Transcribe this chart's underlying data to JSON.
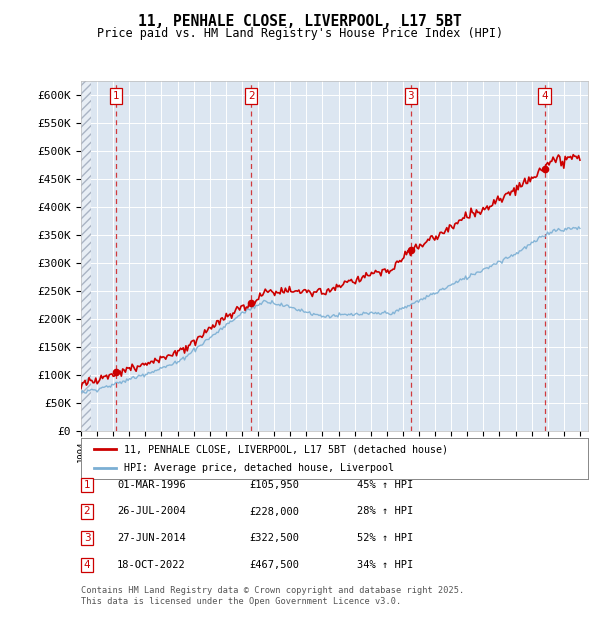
{
  "title1": "11, PENHALE CLOSE, LIVERPOOL, L17 5BT",
  "title2": "Price paid vs. HM Land Registry's House Price Index (HPI)",
  "ylabel_ticks": [
    "£0",
    "£50K",
    "£100K",
    "£150K",
    "£200K",
    "£250K",
    "£300K",
    "£350K",
    "£400K",
    "£450K",
    "£500K",
    "£550K",
    "£600K"
  ],
  "ytick_values": [
    0,
    50000,
    100000,
    150000,
    200000,
    250000,
    300000,
    350000,
    400000,
    450000,
    500000,
    550000,
    600000
  ],
  "xmin": 1994.0,
  "xmax": 2025.5,
  "ymin": 0,
  "ymax": 625000,
  "sale_dates": [
    1996.17,
    2004.57,
    2014.49,
    2022.8
  ],
  "sale_prices": [
    105950,
    228000,
    322500,
    467500
  ],
  "sale_labels": [
    "1",
    "2",
    "3",
    "4"
  ],
  "sale_date_strings": [
    "01-MAR-1996",
    "26-JUL-2004",
    "27-JUN-2014",
    "18-OCT-2022"
  ],
  "sale_price_strings": [
    "£105,950",
    "£228,000",
    "£322,500",
    "£467,500"
  ],
  "sale_hpi_strings": [
    "45% ↑ HPI",
    "28% ↑ HPI",
    "52% ↑ HPI",
    "34% ↑ HPI"
  ],
  "legend_line1": "11, PENHALE CLOSE, LIVERPOOL, L17 5BT (detached house)",
  "legend_line2": "HPI: Average price, detached house, Liverpool",
  "footer1": "Contains HM Land Registry data © Crown copyright and database right 2025.",
  "footer2": "This data is licensed under the Open Government Licence v3.0.",
  "red_color": "#cc0000",
  "blue_color": "#7bafd4",
  "bg_chart": "#dce6f1",
  "bg_figure": "#ffffff",
  "hatch_color": "#aab4c4"
}
